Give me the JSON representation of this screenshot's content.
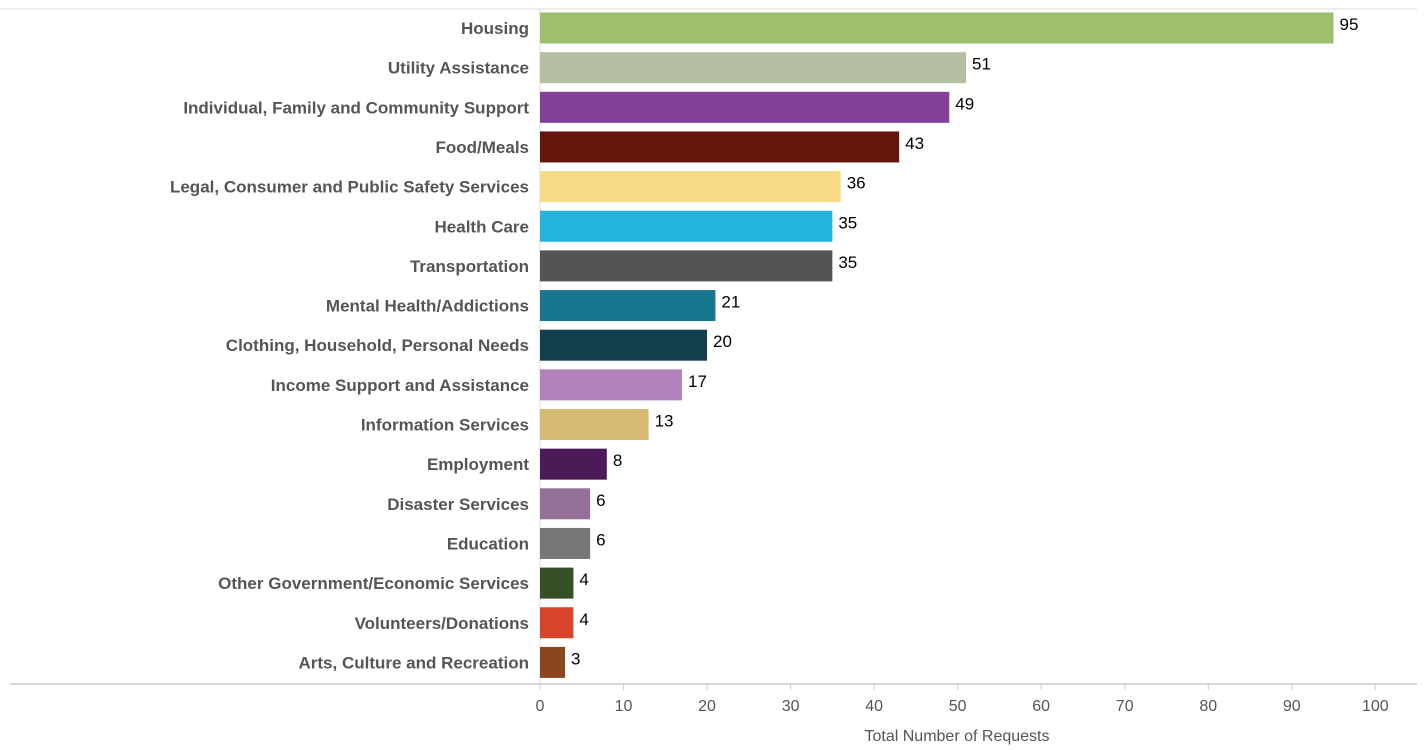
{
  "chart_data": {
    "type": "bar",
    "orientation": "horizontal",
    "categories": [
      "Housing",
      "Utility Assistance",
      "Individual, Family and Community Support",
      "Food/Meals",
      "Legal, Consumer and Public Safety Services",
      "Health Care",
      "Transportation",
      "Mental Health/Addictions",
      "Clothing, Household, Personal Needs",
      "Income Support and Assistance",
      "Information Services",
      "Employment",
      "Disaster Services",
      "Education",
      "Other Government/Economic Services",
      "Volunteers/Donations",
      "Arts, Culture and Recreation"
    ],
    "values": [
      95,
      51,
      49,
      43,
      36,
      35,
      35,
      21,
      20,
      17,
      13,
      8,
      6,
      6,
      4,
      4,
      3
    ],
    "value_labels": [
      "95",
      "51",
      "49",
      "43",
      "36",
      "35",
      "35",
      "21",
      "20",
      "17",
      "13",
      "8",
      "6",
      "6",
      "4",
      "4",
      "3"
    ],
    "colors": [
      "#9dbf6e",
      "#b5bfa1",
      "#843f96",
      "#64150c",
      "#f8db86",
      "#23b4db",
      "#535555",
      "#18778f",
      "#12404f",
      "#b382bc",
      "#d7ba71",
      "#4c1a56",
      "#946f97",
      "#757876",
      "#365025",
      "#d8432a",
      "#8a461f"
    ],
    "title": "",
    "xlabel": "Total Number of Requests",
    "ylabel": "",
    "xlim": [
      0,
      105
    ],
    "x_ticks": [
      0,
      10,
      20,
      30,
      40,
      50,
      60,
      70,
      80,
      90,
      100
    ],
    "x_tick_labels": [
      "0",
      "10",
      "20",
      "30",
      "40",
      "50",
      "60",
      "70",
      "80",
      "90",
      "100"
    ],
    "grid": false,
    "legend": "none"
  }
}
